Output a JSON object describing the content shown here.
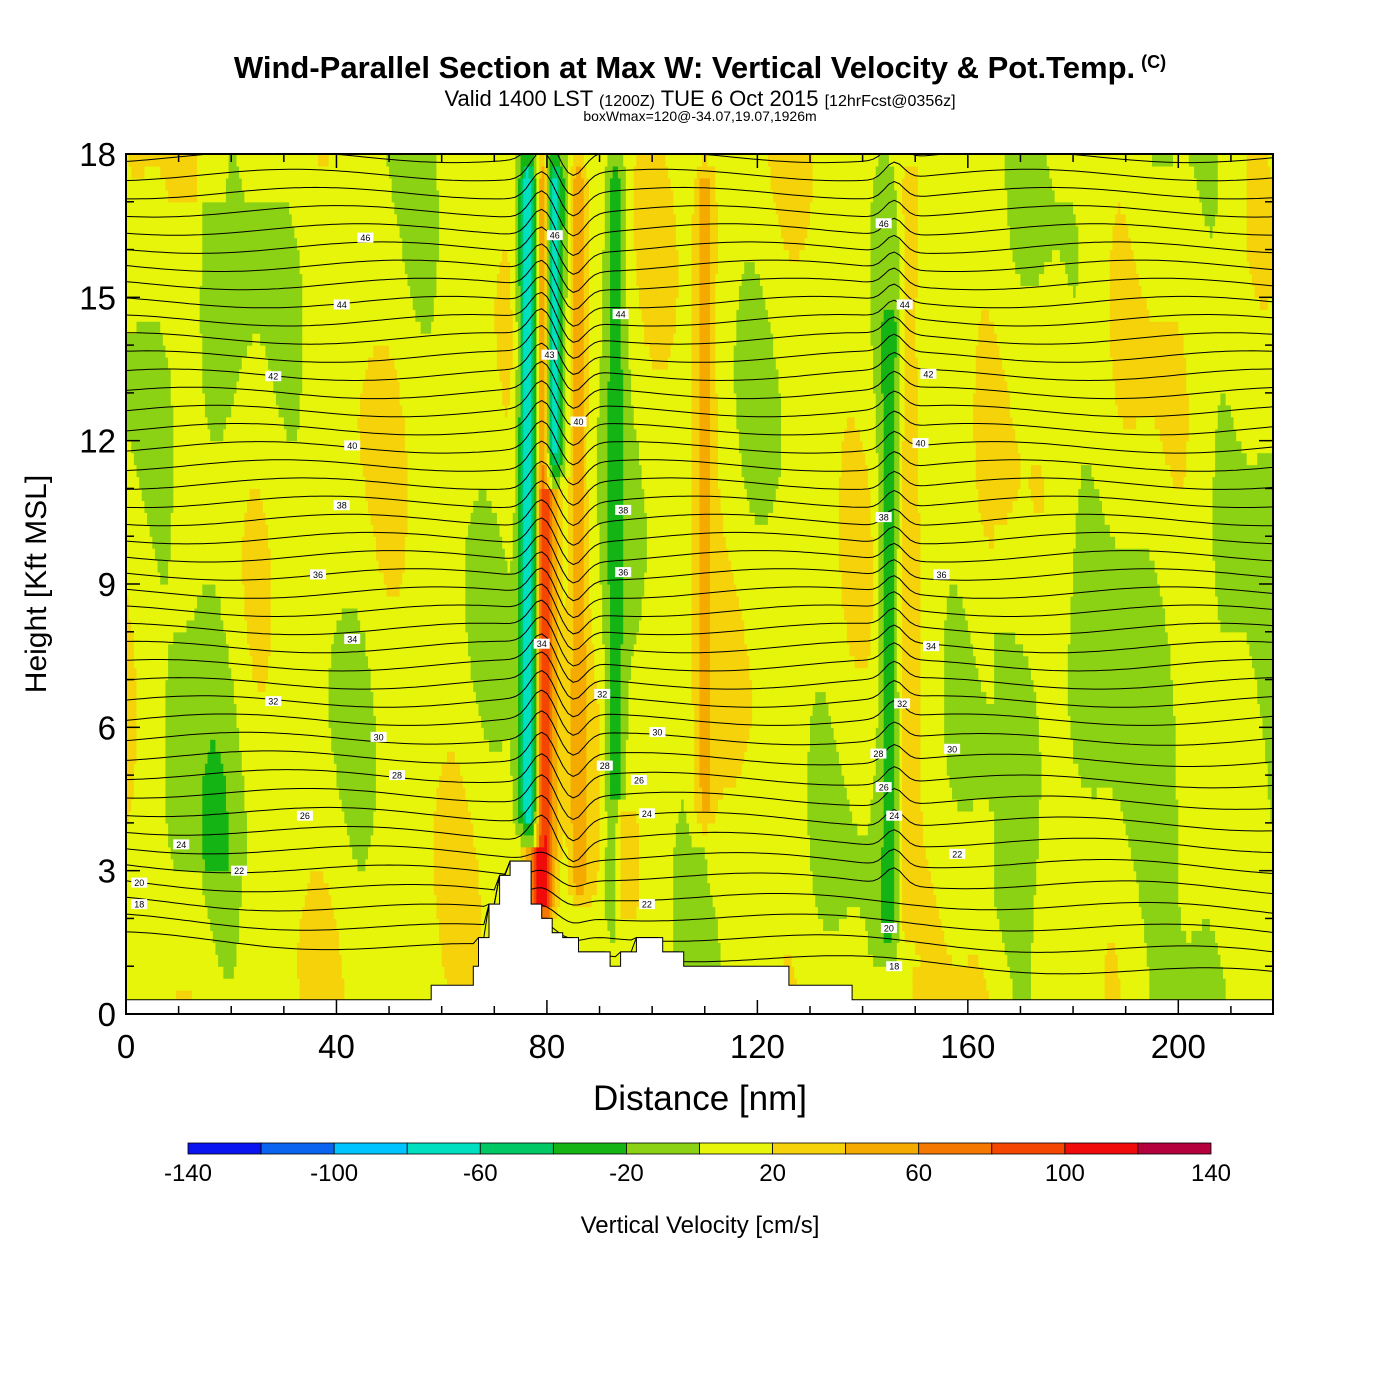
{
  "header": {
    "title": "Wind-Parallel Section at Max W: Vertical Velocity & Pot.Temp.",
    "copyright_mark": "(C)",
    "subtitle_main_a": "Valid 1400 LST",
    "subtitle_utc": "(1200Z)",
    "subtitle_main_b": "TUE 6 Oct 2015",
    "subtitle_fcst": "[12hrFcst@0356z]",
    "subtitle2": "boxWmax=120@-34.07,19.07,1926m"
  },
  "chart_data": {
    "type": "contour-cross-section",
    "xlabel": "Distance [nm]",
    "ylabel": "Height [Kft MSL]",
    "xlim": [
      0,
      218
    ],
    "ylim": [
      0,
      18
    ],
    "x_ticks": [
      0,
      40,
      80,
      120,
      160,
      200
    ],
    "x_tick_labels": [
      "0",
      "40",
      "80",
      "120",
      "160",
      "200"
    ],
    "y_ticks": [
      0,
      3,
      6,
      9,
      12,
      15,
      18
    ],
    "y_tick_labels": [
      "0",
      "3",
      "6",
      "9",
      "12",
      "15",
      "18"
    ],
    "colorbar": {
      "label": "Vertical Velocity [cm/s]",
      "bounds": [
        -140,
        -120,
        -100,
        -80,
        -60,
        -40,
        -20,
        0,
        20,
        40,
        60,
        80,
        100,
        120,
        140
      ],
      "tick_values": [
        -140,
        -100,
        -60,
        -20,
        20,
        60,
        100,
        140
      ],
      "tick_labels": [
        "-140",
        "-100",
        "-60",
        "-20",
        "20",
        "60",
        "100",
        "140"
      ],
      "colors": [
        "#0a14f0",
        "#0a64f0",
        "#00c4ff",
        "#00e0c0",
        "#00c864",
        "#14b414",
        "#8cd214",
        "#e6f50a",
        "#f5d20a",
        "#f5aa00",
        "#f57800",
        "#f54600",
        "#f00a0a",
        "#b4003c"
      ]
    },
    "velocity_features": [
      {
        "name": "main updraft core",
        "x_center": 79,
        "x_width": 2.5,
        "y_from": 1.6,
        "y_to": 18,
        "peak_cm_s": 120
      },
      {
        "name": "downdraft west of core",
        "x_center": 76.5,
        "x_width": 2.0,
        "y_from": 3.5,
        "y_to": 18,
        "peak_cm_s": -80
      },
      {
        "name": "downdraft upper core",
        "x_center": 81.5,
        "x_width": 1.8,
        "y_from": 11,
        "y_to": 18,
        "peak_cm_s": -70
      },
      {
        "name": "updraft east",
        "x_center": 86,
        "x_width": 1.5,
        "y_from": 2,
        "y_to": 18,
        "peak_cm_s": 60
      },
      {
        "name": "downdraft east",
        "x_center": 93,
        "x_width": 2.0,
        "y_from": 1.5,
        "y_to": 18,
        "peak_cm_s": -30
      },
      {
        "name": "updraft band",
        "x_center": 110,
        "x_width": 2.0,
        "y_from": 3.5,
        "y_to": 18,
        "peak_cm_s": 45
      },
      {
        "name": "downdraft band",
        "x_center": 145,
        "x_width": 2.0,
        "y_from": 1,
        "y_to": 15,
        "peak_cm_s": -30
      },
      {
        "name": "updraft band",
        "x_center": 149,
        "x_width": 1.5,
        "y_from": 1,
        "y_to": 18,
        "peak_cm_s": 40
      },
      {
        "name": "updraft lee",
        "x_center": 95,
        "x_width": 2.0,
        "y_from": 1.5,
        "y_to": 4.5,
        "peak_cm_s": 40
      }
    ],
    "theta_labels": [
      {
        "x": 2.5,
        "y": 2.3,
        "text": "18"
      },
      {
        "x": 2.5,
        "y": 2.75,
        "text": "20"
      },
      {
        "x": 10.5,
        "y": 3.55,
        "text": "24"
      },
      {
        "x": 21.5,
        "y": 3.0,
        "text": "22"
      },
      {
        "x": 34,
        "y": 4.15,
        "text": "26"
      },
      {
        "x": 51.5,
        "y": 5.0,
        "text": "28"
      },
      {
        "x": 48,
        "y": 5.8,
        "text": "30"
      },
      {
        "x": 28,
        "y": 6.55,
        "text": "32"
      },
      {
        "x": 43,
        "y": 7.85,
        "text": "34"
      },
      {
        "x": 36.5,
        "y": 9.2,
        "text": "36"
      },
      {
        "x": 41,
        "y": 10.65,
        "text": "38"
      },
      {
        "x": 43,
        "y": 11.9,
        "text": "40"
      },
      {
        "x": 28,
        "y": 13.35,
        "text": "42"
      },
      {
        "x": 41,
        "y": 14.85,
        "text": "44"
      },
      {
        "x": 45.5,
        "y": 16.25,
        "text": "46"
      },
      {
        "x": 81.5,
        "y": 16.3,
        "text": "46"
      },
      {
        "x": 80.5,
        "y": 13.8,
        "text": "43"
      },
      {
        "x": 86,
        "y": 12.4,
        "text": "40"
      },
      {
        "x": 94,
        "y": 14.65,
        "text": "44"
      },
      {
        "x": 79,
        "y": 7.75,
        "text": "34"
      },
      {
        "x": 90.5,
        "y": 6.7,
        "text": "32"
      },
      {
        "x": 101,
        "y": 5.9,
        "text": "30"
      },
      {
        "x": 91,
        "y": 5.2,
        "text": "28"
      },
      {
        "x": 97.5,
        "y": 4.9,
        "text": "26"
      },
      {
        "x": 99,
        "y": 4.2,
        "text": "24"
      },
      {
        "x": 94.5,
        "y": 10.55,
        "text": "38"
      },
      {
        "x": 94.5,
        "y": 9.25,
        "text": "36"
      },
      {
        "x": 99,
        "y": 2.3,
        "text": "22"
      },
      {
        "x": 144,
        "y": 16.55,
        "text": "46"
      },
      {
        "x": 148,
        "y": 14.85,
        "text": "44"
      },
      {
        "x": 152.5,
        "y": 13.4,
        "text": "42"
      },
      {
        "x": 151,
        "y": 11.95,
        "text": "40"
      },
      {
        "x": 144,
        "y": 10.4,
        "text": "38"
      },
      {
        "x": 155,
        "y": 9.2,
        "text": "36"
      },
      {
        "x": 153,
        "y": 7.7,
        "text": "34"
      },
      {
        "x": 147.5,
        "y": 6.5,
        "text": "32"
      },
      {
        "x": 157,
        "y": 5.55,
        "text": "30"
      },
      {
        "x": 143,
        "y": 5.45,
        "text": "28"
      },
      {
        "x": 144,
        "y": 4.75,
        "text": "26"
      },
      {
        "x": 146,
        "y": 4.15,
        "text": "24"
      },
      {
        "x": 158,
        "y": 3.35,
        "text": "22"
      },
      {
        "x": 145,
        "y": 1.8,
        "text": "20"
      },
      {
        "x": 146,
        "y": 1.0,
        "text": "18"
      }
    ],
    "terrain_steps": [
      [
        0,
        0.3
      ],
      [
        58,
        0.3
      ],
      [
        58,
        0.6
      ],
      [
        66,
        0.6
      ],
      [
        66,
        1.0
      ],
      [
        67,
        1.0
      ],
      [
        67,
        1.6
      ],
      [
        69,
        1.6
      ],
      [
        69,
        2.3
      ],
      [
        71,
        2.3
      ],
      [
        71,
        2.9
      ],
      [
        73,
        2.9
      ],
      [
        73,
        3.2
      ],
      [
        77,
        3.2
      ],
      [
        77,
        2.3
      ],
      [
        79,
        2.3
      ],
      [
        79,
        2.0
      ],
      [
        81,
        2.0
      ],
      [
        81,
        1.7
      ],
      [
        83,
        1.7
      ],
      [
        83,
        1.6
      ],
      [
        86,
        1.6
      ],
      [
        86,
        1.3
      ],
      [
        92,
        1.3
      ],
      [
        92,
        1.0
      ],
      [
        94,
        1.0
      ],
      [
        94,
        1.3
      ],
      [
        97,
        1.3
      ],
      [
        97,
        1.6
      ],
      [
        102,
        1.6
      ],
      [
        102,
        1.3
      ],
      [
        106,
        1.3
      ],
      [
        106,
        1.0
      ],
      [
        126,
        1.0
      ],
      [
        126,
        0.6
      ],
      [
        138,
        0.6
      ],
      [
        138,
        0.3
      ],
      [
        218,
        0.3
      ]
    ]
  }
}
